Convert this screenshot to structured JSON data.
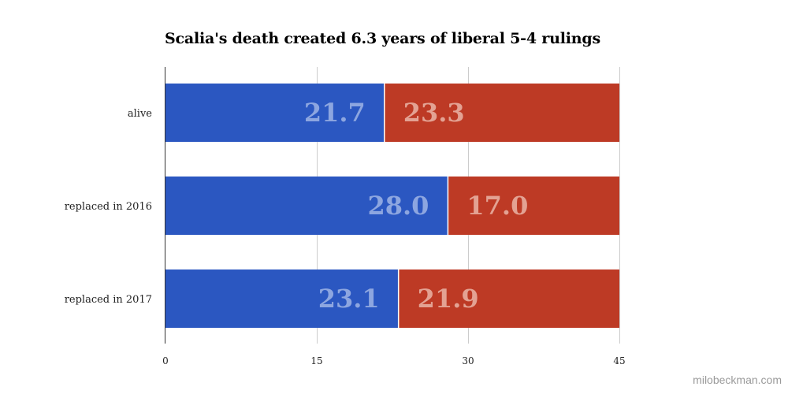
{
  "chart_data": {
    "type": "bar",
    "stacked": true,
    "orientation": "horizontal",
    "title": "Scalia's death created 6.3 years of liberal 5-4 rulings",
    "categories": [
      "alive",
      "replaced in 2016",
      "replaced in 2017"
    ],
    "series": [
      {
        "values": [
          21.7,
          28.0,
          23.1
        ],
        "labels": [
          "21.7",
          "28.0",
          "23.1"
        ],
        "color": "#2b57c1",
        "label_color": "#8da6e0"
      },
      {
        "values": [
          23.3,
          17.0,
          21.9
        ],
        "labels": [
          "23.3",
          "17.0",
          "21.9"
        ],
        "color": "#bd3a25",
        "label_color": "#e3a293"
      }
    ],
    "xlim": [
      0,
      45
    ],
    "xticks": [
      0,
      15,
      30,
      45
    ],
    "xtick_labels": [
      "0",
      "15",
      "30",
      "45"
    ],
    "xlabel": "",
    "ylabel": "",
    "grid": true,
    "legend": false
  },
  "watermark": "milobeckman.com"
}
